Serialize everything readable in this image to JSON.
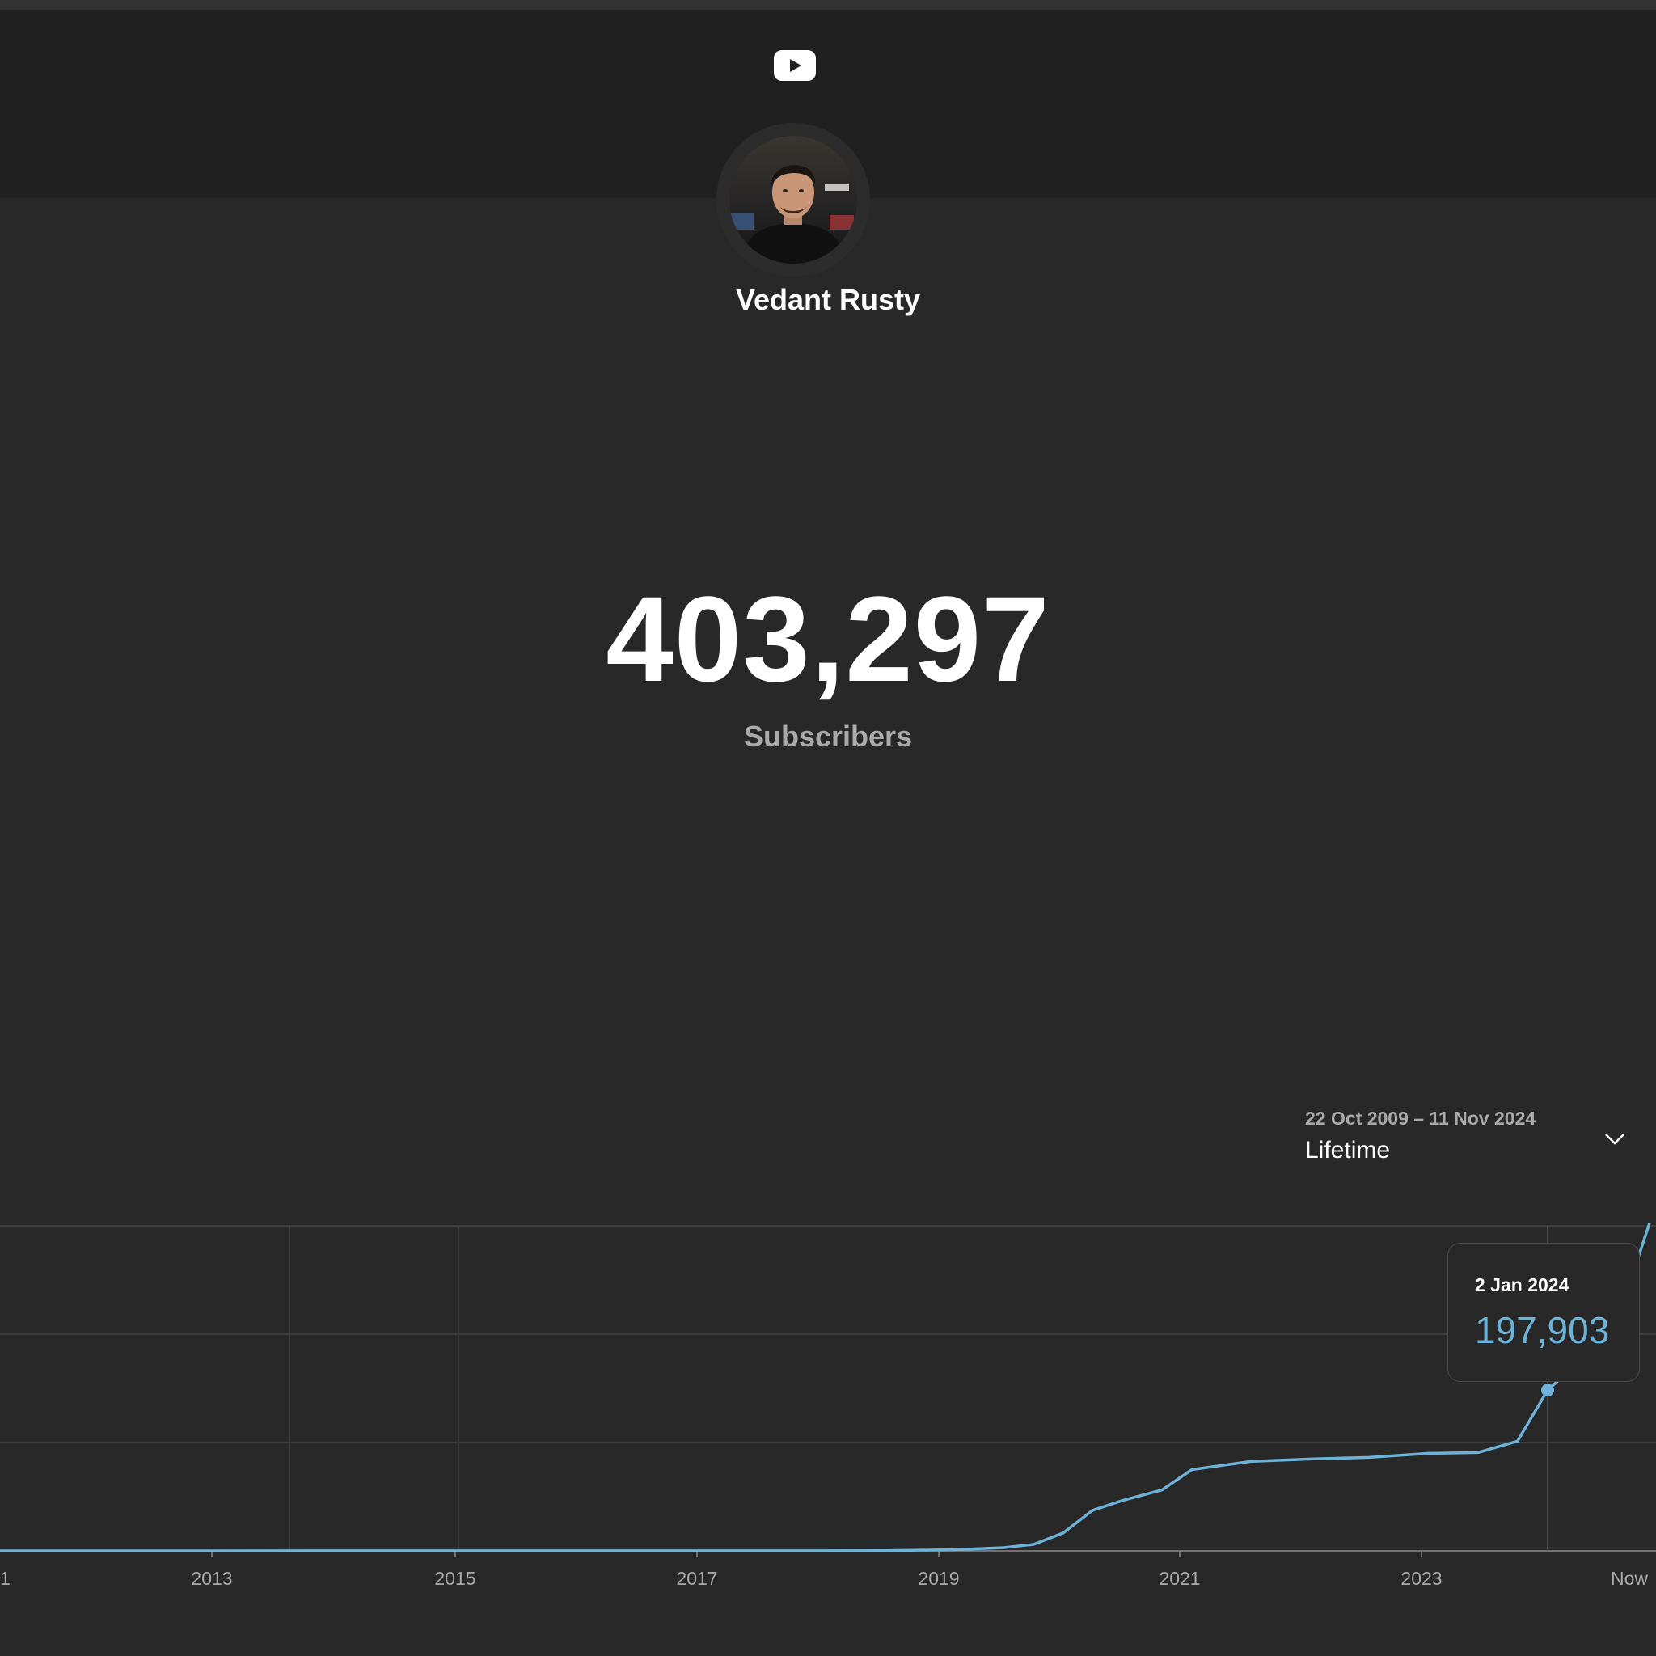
{
  "header": {
    "logo_icon": "youtube-play-icon",
    "channel_name": "Vedant Rusty"
  },
  "stats": {
    "subscriber_count": "403,297",
    "subscriber_label": "Subscribers"
  },
  "date_range": {
    "dates": "22 Oct 2009 – 11 Nov 2024",
    "label": "Lifetime",
    "icon": "chevron-down-icon"
  },
  "tooltip": {
    "date": "2 Jan 2024",
    "value": "197,903"
  },
  "colors": {
    "background": "#282828",
    "header": "#202020",
    "line": "#6cb2d9"
  },
  "chart_data": {
    "type": "line",
    "x_ticks": [
      "1",
      "2013",
      "2015",
      "2017",
      "2019",
      "2021",
      "2023",
      "Now"
    ],
    "series": [
      {
        "x": [
          "2011-01-01",
          "2018-06-01",
          "2019-01-01",
          "2019-06-01",
          "2019-09-01",
          "2019-12-01",
          "2020-03-01",
          "2020-06-01",
          "2020-10-01",
          "2021-01-01",
          "2021-07-01",
          "2022-01-01",
          "2022-07-01",
          "2023-01-01",
          "2023-06-01",
          "2023-10-01",
          "2024-01-02",
          "2024-04-01",
          "2024-08-01",
          "2024-11-11"
        ],
        "y": [
          0,
          200,
          1500,
          4000,
          8000,
          22000,
          50000,
          62000,
          75000,
          100000,
          110000,
          113000,
          115000,
          120000,
          121000,
          135000,
          197903,
          230000,
          280000,
          403297
        ]
      }
    ],
    "highlight": {
      "x": "2024-01-02",
      "y": 197903
    },
    "grid": true
  }
}
